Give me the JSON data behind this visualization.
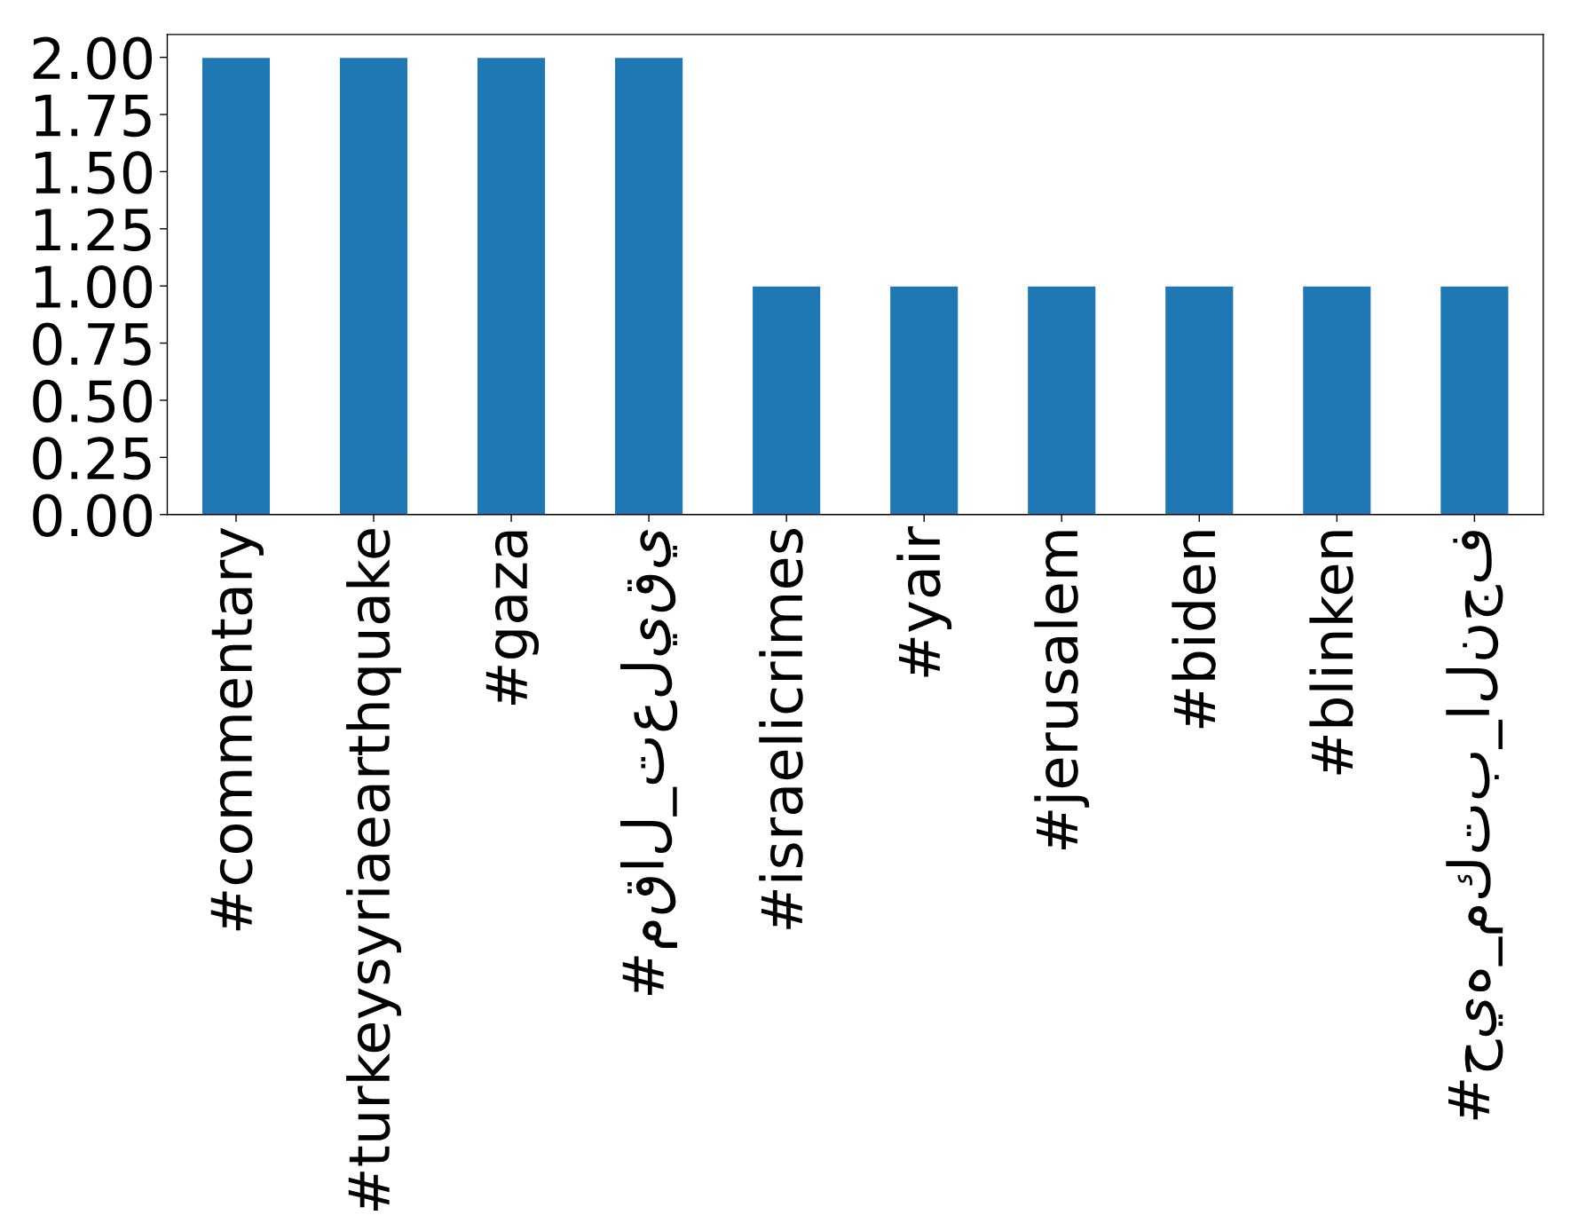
{
  "chart_data": {
    "type": "bar",
    "categories": [
      "#commentary",
      "#turkeysyriaearthquake",
      "#gaza",
      "#مقال_تعليقي",
      "#israelicrimes",
      "#yair",
      "#jerusalem",
      "#biden",
      "#blinken",
      "#حيه_مكتب_النجف"
    ],
    "values": [
      2,
      2,
      2,
      2,
      1,
      1,
      1,
      1,
      1,
      1
    ],
    "color": "#1f77b4",
    "ylim": [
      0,
      2.1
    ],
    "yticks": [
      {
        "value": 0,
        "label": "0.00"
      },
      {
        "value": 0.25,
        "label": "0.25"
      },
      {
        "value": 0.5,
        "label": "0.50"
      },
      {
        "value": 0.75,
        "label": "0.75"
      },
      {
        "value": 1,
        "label": "1.00"
      },
      {
        "value": 1.25,
        "label": "1.25"
      },
      {
        "value": 1.5,
        "label": "1.50"
      },
      {
        "value": 1.75,
        "label": "1.75"
      },
      {
        "value": 2,
        "label": "2.00"
      }
    ],
    "grid": false
  }
}
